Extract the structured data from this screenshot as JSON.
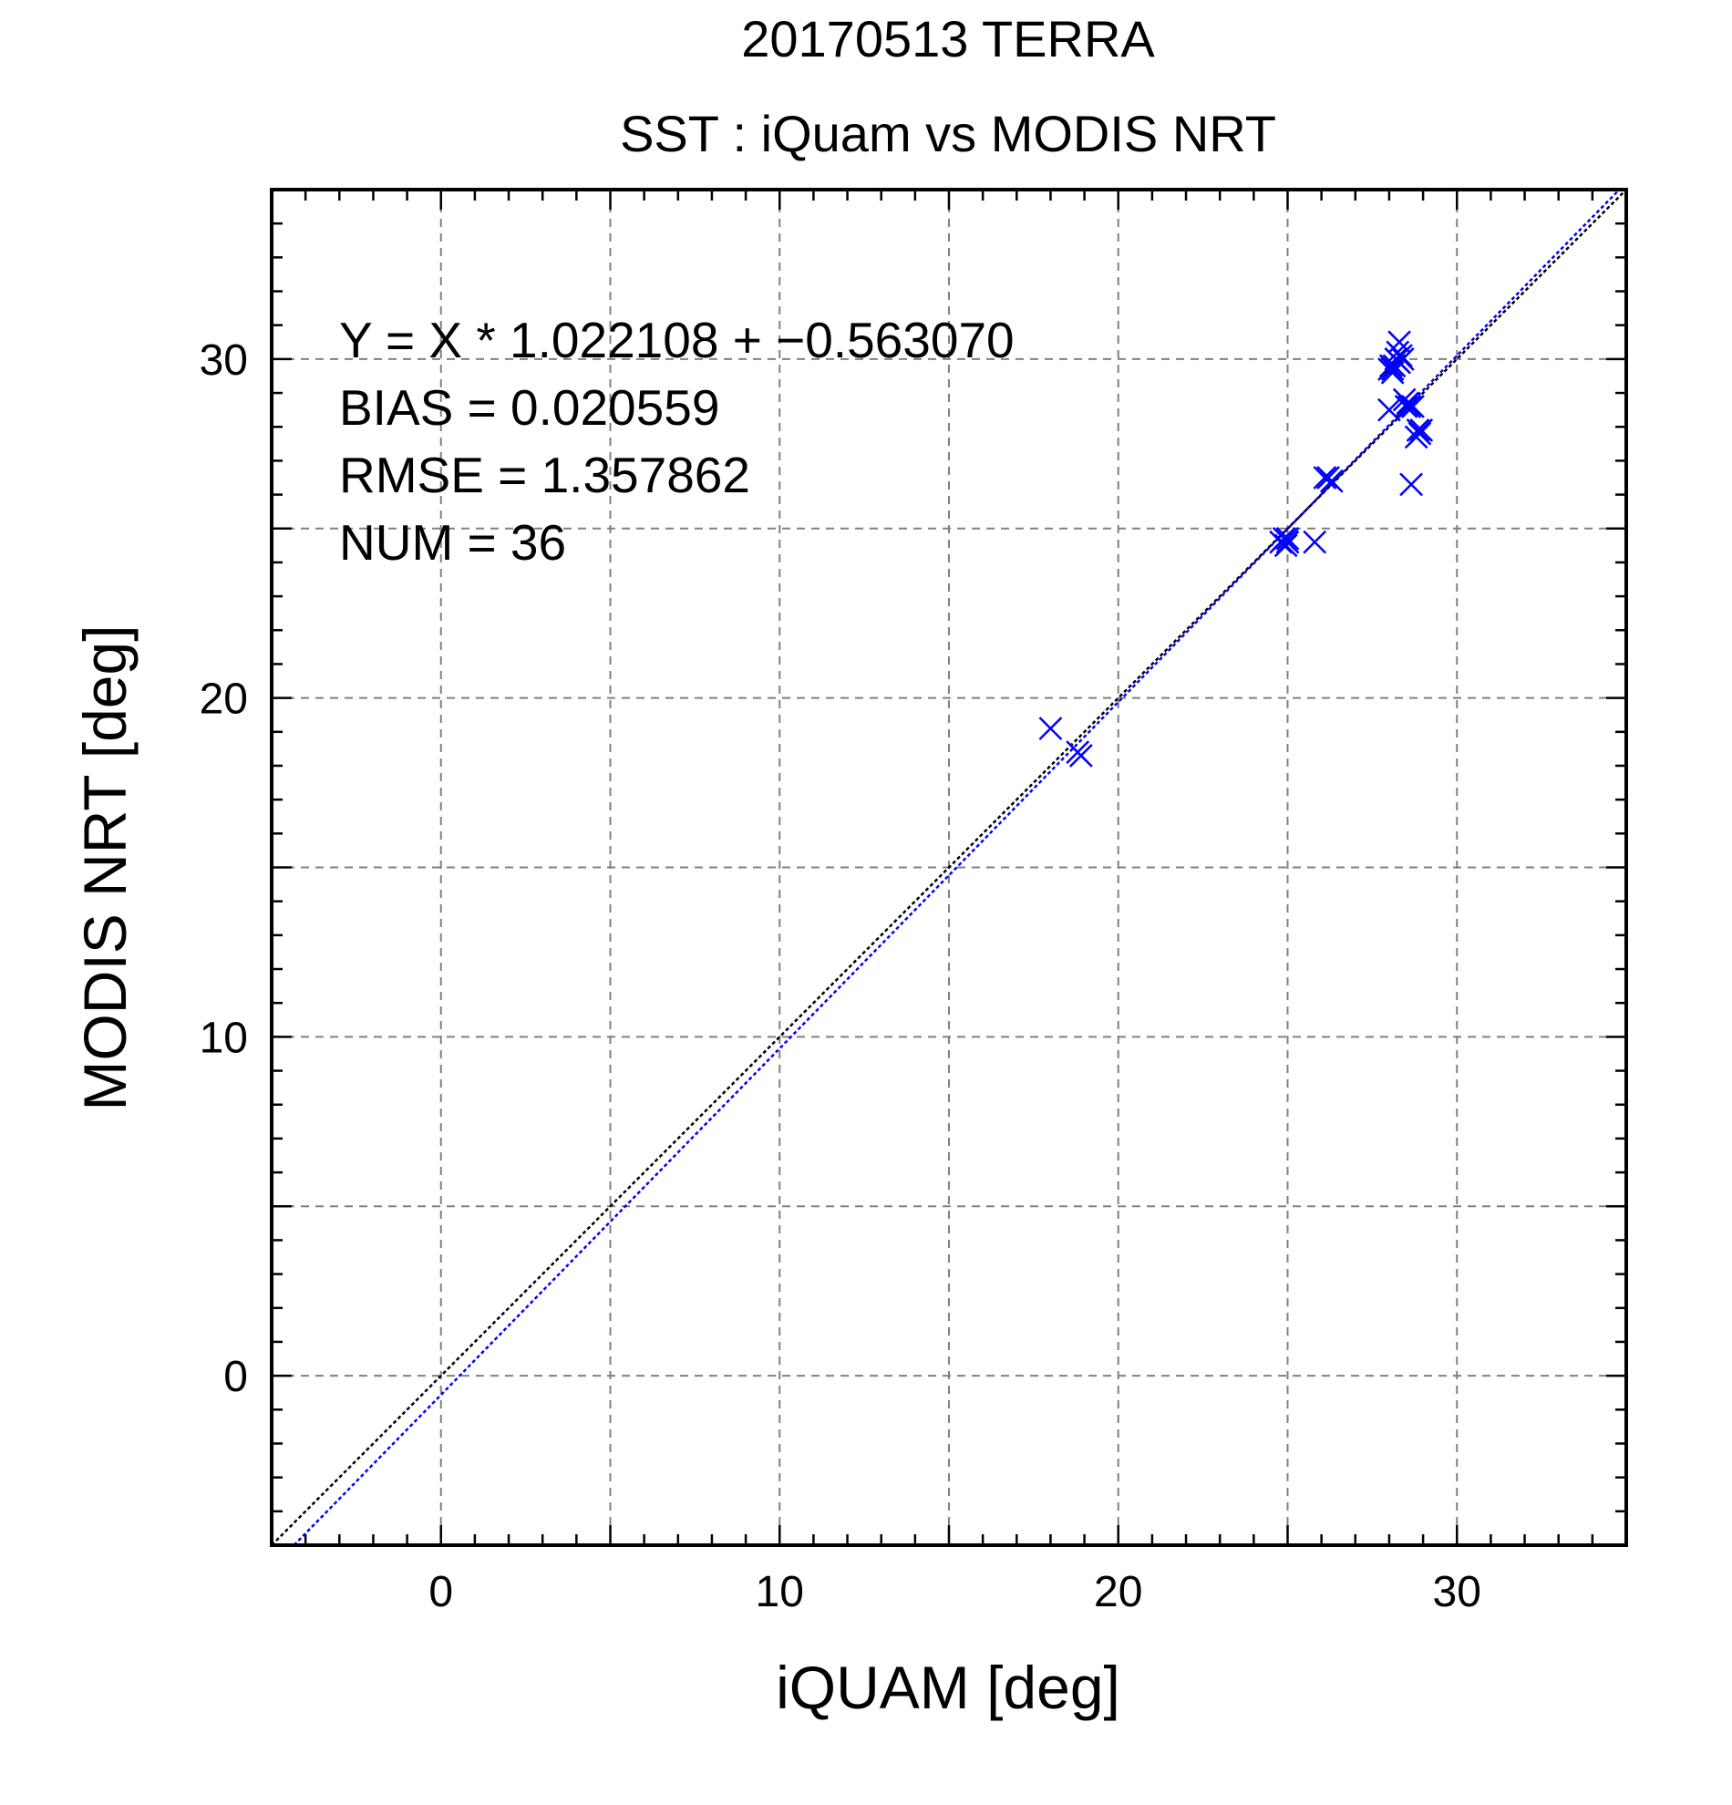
{
  "chart_data": {
    "type": "scatter",
    "title": "20170513 TERRA",
    "subtitle": "SST : iQuam vs MODIS NRT",
    "xlabel": "iQUAM [deg]",
    "ylabel": "MODIS NRT [deg]",
    "xlim": [
      -5,
      35
    ],
    "ylim": [
      -5,
      35
    ],
    "xticks": [
      0,
      10,
      20,
      30
    ],
    "yticks": [
      0,
      10,
      20,
      30
    ],
    "grid": true,
    "stats": [
      "Y = X * 1.022108 + −0.563070",
      "BIAS = 0.020559",
      "RMSE = 1.357862",
      "NUM = 36"
    ],
    "series": [
      {
        "marker": "x",
        "color": "#0000ff",
        "x": [
          18.0,
          18.8,
          18.9,
          24.8,
          24.9,
          24.95,
          25.0,
          25.8,
          26.1,
          26.3,
          28.0,
          28.05,
          28.1,
          28.15,
          28.2,
          28.25,
          28.3,
          28.35,
          28.4,
          28.45,
          28.5,
          28.55,
          28.6,
          28.65,
          28.7,
          28.8,
          28.85,
          28.9,
          28.95,
          28.3,
          28.1,
          28.0,
          28.2,
          28.6,
          25.0,
          26.2
        ],
        "y": [
          19.1,
          18.4,
          18.3,
          24.6,
          24.7,
          24.5,
          24.6,
          24.6,
          26.5,
          26.4,
          29.7,
          29.8,
          29.6,
          29.8,
          30.0,
          30.2,
          30.5,
          30.1,
          30.0,
          28.8,
          28.6,
          28.7,
          28.6,
          26.3,
          28.6,
          27.7,
          27.9,
          27.8,
          27.9,
          29.9,
          29.7,
          28.5,
          30.0,
          28.6,
          24.7,
          26.5
        ]
      }
    ],
    "lines": [
      {
        "name": "",
        "slope": 1.0,
        "intercept": 0.0,
        "color": "#000000",
        "style": "dotted"
      },
      {
        "name": "",
        "slope": 1.022108,
        "intercept": -0.56307,
        "color": "#0000ff",
        "style": "dotted"
      }
    ]
  }
}
